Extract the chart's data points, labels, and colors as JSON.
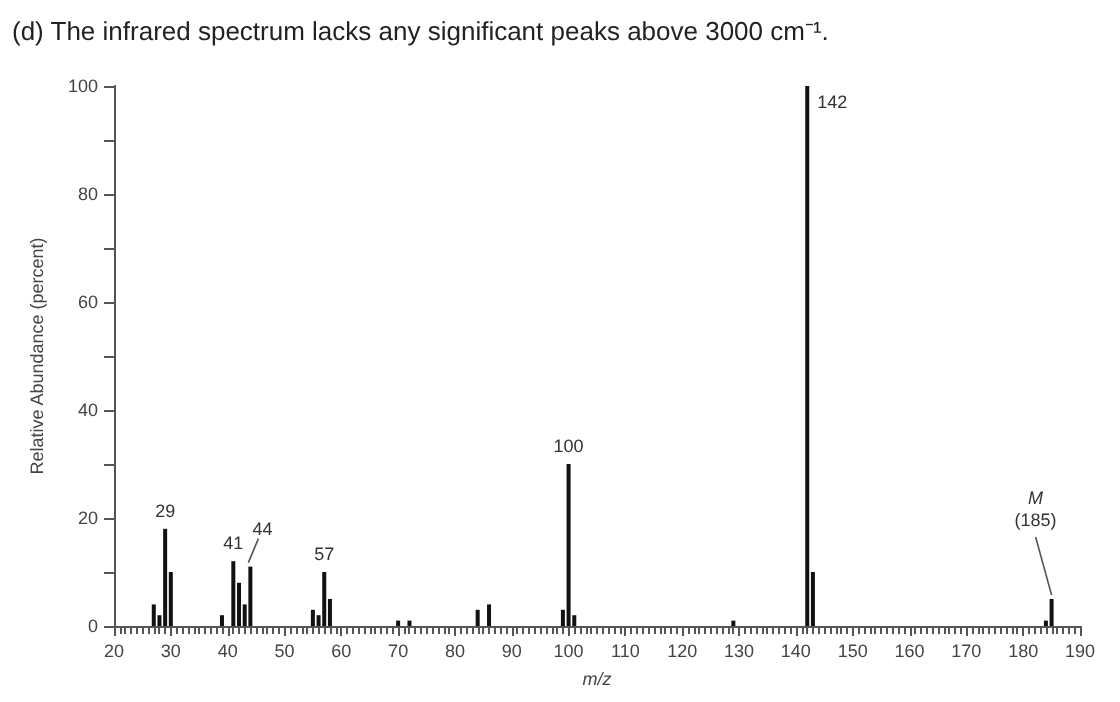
{
  "chart_data": {
    "type": "bar",
    "title": "(d) The infrared spectrum lacks any significant peaks above 3000 cm⁻¹.",
    "xlabel": "m/z",
    "ylabel": "Relative Abundance (percent)",
    "x": [
      27,
      28,
      29,
      30,
      39,
      41,
      42,
      43,
      44,
      55,
      56,
      57,
      58,
      70,
      72,
      84,
      86,
      99,
      100,
      101,
      129,
      142,
      143,
      184,
      185
    ],
    "values": [
      4,
      2,
      18,
      10,
      2,
      12,
      8,
      4,
      11,
      3,
      2,
      10,
      5,
      1,
      1,
      3,
      4,
      3,
      30,
      2,
      1,
      100,
      10,
      1,
      5
    ],
    "color": "#111111",
    "xlim": [
      20,
      190
    ],
    "xticks": [
      20,
      30,
      40,
      50,
      60,
      70,
      80,
      90,
      100,
      110,
      120,
      130,
      140,
      150,
      160,
      170,
      180,
      190
    ],
    "ylim": [
      0,
      100
    ],
    "yticks": [
      0,
      20,
      40,
      60,
      80,
      100
    ],
    "grid": false,
    "annotations": [
      {
        "text": "29",
        "x": 29,
        "y": 18
      },
      {
        "text": "41",
        "x": 41,
        "y": 12
      },
      {
        "text": "44",
        "x": 44,
        "y": 11
      },
      {
        "text": "57",
        "x": 57,
        "y": 10
      },
      {
        "text": "100",
        "x": 100,
        "y": 30
      },
      {
        "text": "142",
        "x": 142,
        "y": 100
      },
      {
        "text": "M (185)",
        "x": 185,
        "y": 5
      }
    ]
  }
}
